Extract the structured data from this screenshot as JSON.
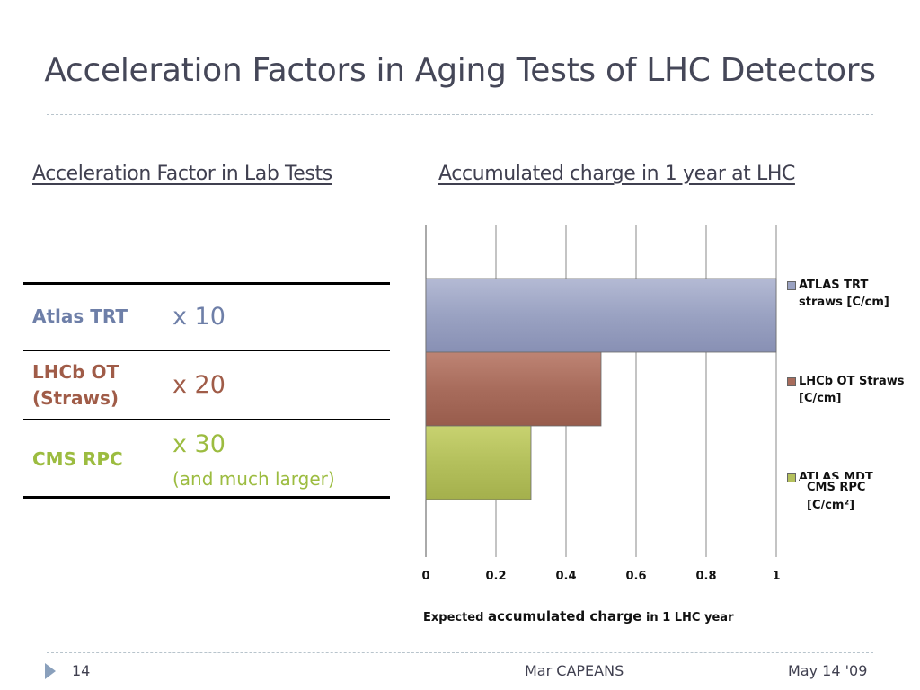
{
  "slide": {
    "title": "Acceleration Factors in Aging Tests of LHC Detectors",
    "left_heading": "Acceleration Factor in Lab Tests",
    "right_heading": "Accumulated charge in 1 year at LHC"
  },
  "table": {
    "rows": [
      {
        "name": "Atlas TRT",
        "value": "x 10",
        "note": "",
        "color": "#6e7fa8"
      },
      {
        "name": "LHCb OT (Straws)",
        "value": "x 20",
        "note": "",
        "color": "#a05c48"
      },
      {
        "name": "CMS RPC",
        "value": "x 30",
        "note": "(and much larger)",
        "color": "#9cbc40"
      }
    ]
  },
  "chart_data": {
    "type": "bar",
    "orientation": "horizontal",
    "categories": [
      "ATLAS TRT straws [C/cm]",
      "LHCb OT Straws [C/cm]",
      "CMS RPC [C/cm²]"
    ],
    "values": [
      1,
      0.5,
      0.3
    ],
    "colors": [
      "#9aa2c2",
      "#a86c5c",
      "#b4c05c"
    ],
    "xlim": [
      0,
      1
    ],
    "x_ticks": [
      "0",
      "0.2",
      "0.4",
      "0.6",
      "0.8",
      "1"
    ],
    "grid": true,
    "legend_position": "right",
    "legend": [
      {
        "label_line1": "ATLAS TRT",
        "label_line2": "straws [C/cm]"
      },
      {
        "label_line1": "LHCb OT Straws",
        "label_line2": "[C/cm]"
      },
      {
        "label_line1": "ATLAS MDT",
        "label_line2": ""
      }
    ],
    "legend_overlay": {
      "line1": "CMS RPC",
      "line2": "[C/cm²]"
    },
    "xlabel": {
      "part1": "Expected ",
      "part2": "accumulated charge",
      "part3": " in 1 LHC year"
    }
  },
  "footer": {
    "page": "14",
    "author": "Mar CAPEANS",
    "date": "May 14 '09"
  }
}
